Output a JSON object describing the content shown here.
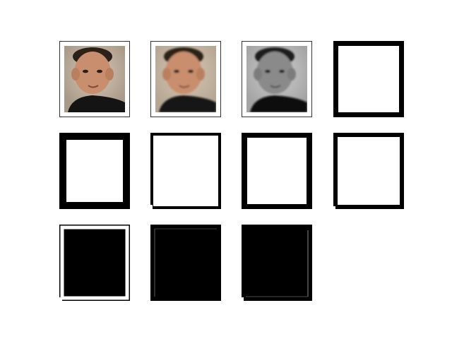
{
  "figure": {
    "rows": 3,
    "columns": 4,
    "panel_count": 11
  },
  "panels": [
    {
      "kind": "photo",
      "tone": "color"
    },
    {
      "kind": "photo",
      "tone": "color-blurred"
    },
    {
      "kind": "photo",
      "tone": "grayscale"
    },
    {
      "kind": "mask",
      "variant": "thick-black-frame-white-center"
    },
    {
      "kind": "mask",
      "variant": "thick-black-frame-white-center"
    },
    {
      "kind": "mask",
      "variant": "thin-black-frame-white-center"
    },
    {
      "kind": "mask",
      "variant": "black-frame-white-center"
    },
    {
      "kind": "mask",
      "variant": "black-frame-white-center"
    },
    {
      "kind": "mask",
      "variant": "white-ring-on-black"
    },
    {
      "kind": "mask",
      "variant": "black-with-faint-outline"
    },
    {
      "kind": "mask",
      "variant": "black-with-faint-outline"
    }
  ],
  "colors": {
    "background": "#ffffff",
    "mask_black": "#000000",
    "mask_white": "#ffffff",
    "photo_backdrop_warm": "#bfb3a5",
    "photo_backdrop_gray": "#b9b9b9"
  }
}
